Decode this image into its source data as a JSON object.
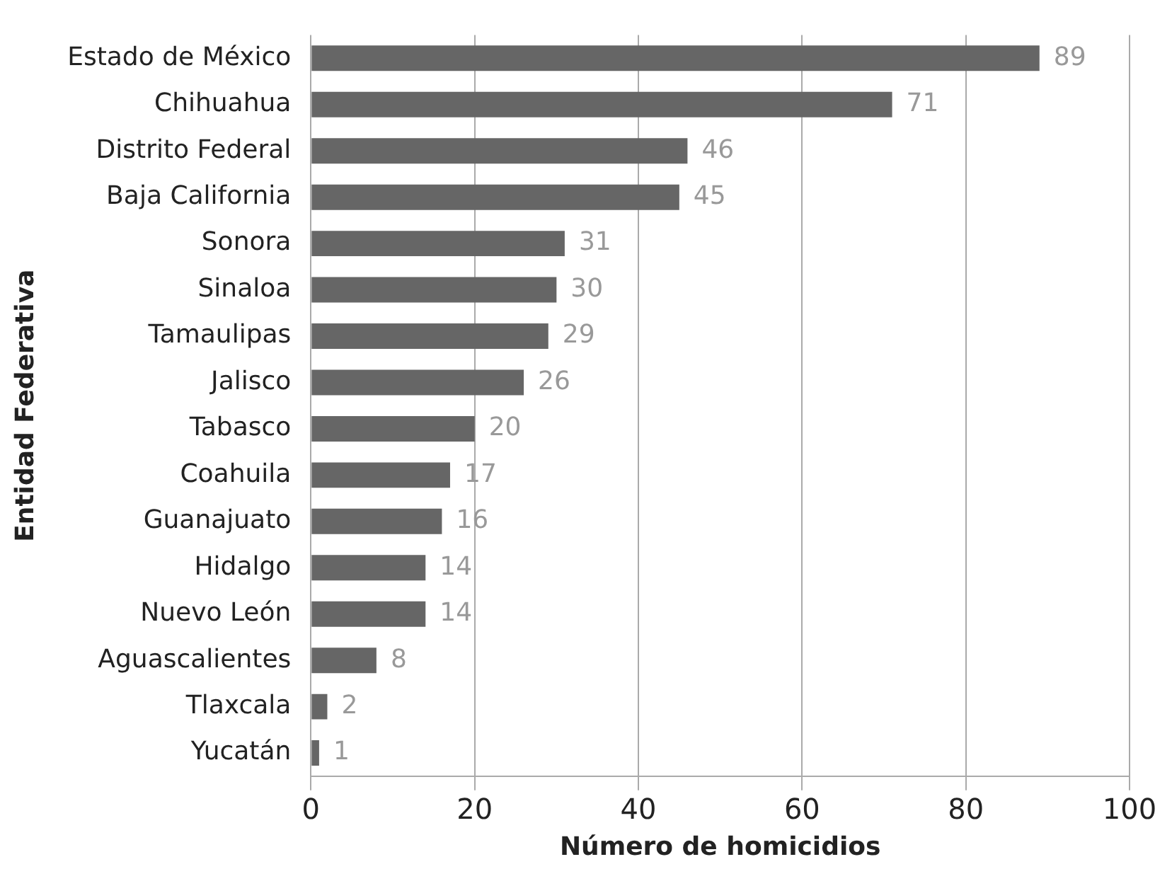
{
  "chart_data": {
    "type": "bar",
    "orientation": "horizontal",
    "xlabel": "Número de homicidios",
    "ylabel": "Entidad Federativa",
    "categories": [
      "Estado de México",
      "Chihuahua",
      "Distrito Federal",
      "Baja California",
      "Sonora",
      "Sinaloa",
      "Tamaulipas",
      "Jalisco",
      "Tabasco",
      "Coahuila",
      "Guanajuato",
      "Hidalgo",
      "Nuevo León",
      "Aguascalientes",
      "Tlaxcala",
      "Yucatán"
    ],
    "values": [
      89,
      71,
      46,
      45,
      31,
      30,
      29,
      26,
      20,
      17,
      16,
      14,
      14,
      8,
      2,
      1
    ],
    "color": "#666666",
    "xlim": [
      0,
      100
    ],
    "xticks": [
      0,
      20,
      40,
      60,
      80,
      100
    ],
    "grid": "x",
    "data_labels": true,
    "legend": false
  }
}
